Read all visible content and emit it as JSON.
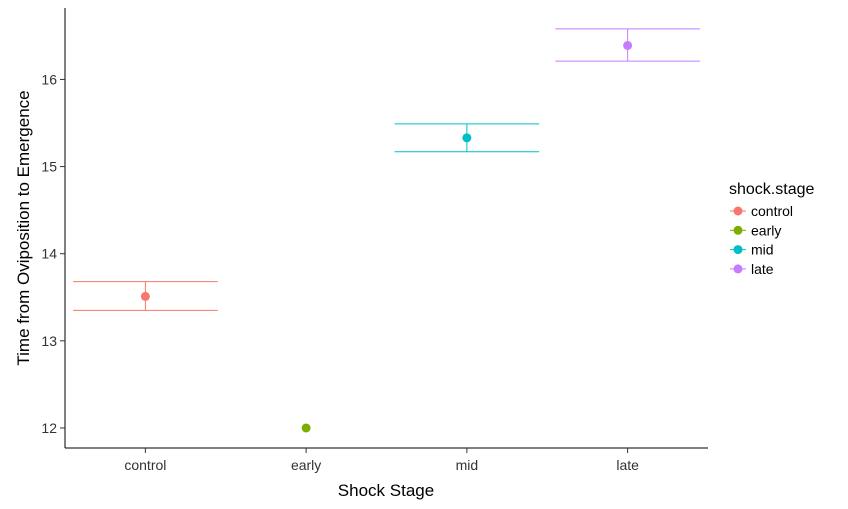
{
  "chart_data": {
    "type": "scatter",
    "title": "",
    "xlabel": "Shock Stage",
    "ylabel": "Time from Oviposition to Emergence",
    "categories": [
      "control",
      "early",
      "mid",
      "late"
    ],
    "ylim": [
      11.77,
      16.82
    ],
    "yticks": [
      12,
      13,
      14,
      15,
      16
    ],
    "grid": false,
    "series": [
      {
        "name": "control",
        "color": "#F8766D",
        "value": 13.51,
        "error_low": 13.35,
        "error_high": 13.68
      },
      {
        "name": "early",
        "color": "#7CAE00",
        "value": 12.0,
        "error_low": 12.0,
        "error_high": 12.0
      },
      {
        "name": "mid",
        "color": "#00BFC4",
        "value": 15.33,
        "error_low": 15.17,
        "error_high": 15.49
      },
      {
        "name": "late",
        "color": "#C77CFF",
        "value": 16.39,
        "error_low": 16.21,
        "error_high": 16.58
      }
    ],
    "legend": {
      "title": "shock.stage",
      "position": "right",
      "entries": [
        "control",
        "early",
        "mid",
        "late"
      ]
    }
  }
}
